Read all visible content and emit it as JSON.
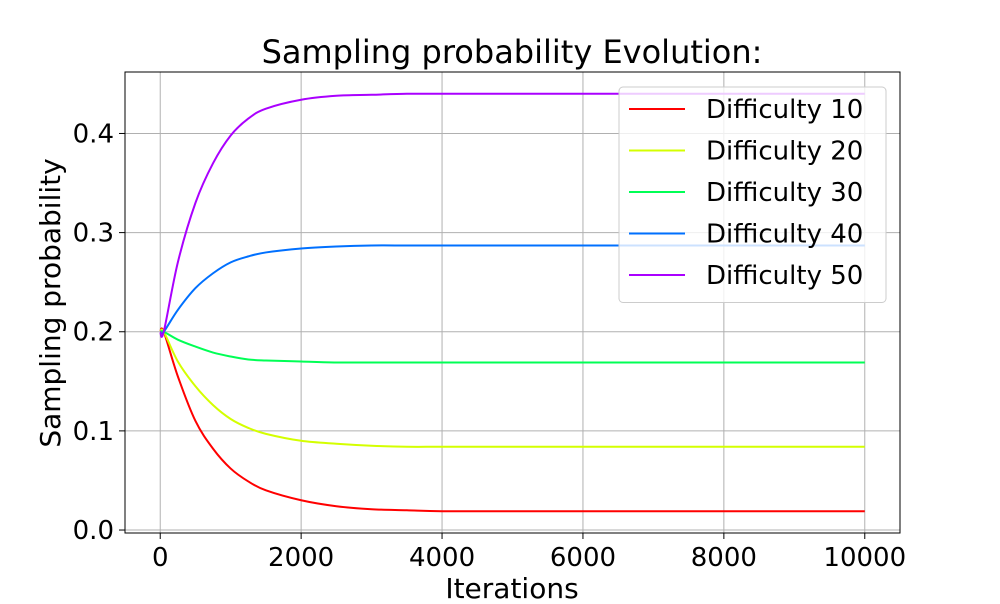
{
  "chart_data": {
    "type": "line",
    "title": "Sampling probability Evolution:",
    "xlabel": "Iterations",
    "ylabel": "Sampling probability",
    "xlim": [
      -500,
      10500
    ],
    "ylim": [
      -0.003,
      0.462
    ],
    "xticks": [
      0,
      2000,
      4000,
      6000,
      8000,
      10000
    ],
    "xtick_labels": [
      "0",
      "2000",
      "4000",
      "6000",
      "8000",
      "10000"
    ],
    "yticks": [
      0.0,
      0.1,
      0.2,
      0.3,
      0.4
    ],
    "ytick_labels": [
      "0.0",
      "0.1",
      "0.2",
      "0.3",
      "0.4"
    ],
    "grid": true,
    "legend_position": "top-right",
    "x": [
      0,
      50,
      250,
      500,
      750,
      1000,
      1250,
      1500,
      2000,
      2500,
      3000,
      3500,
      4000,
      5000,
      6000,
      7000,
      8000,
      9000,
      10000
    ],
    "series": [
      {
        "name": "Difficulty 10",
        "color": "#ff0000",
        "values": [
          0.2,
          0.2,
          0.155,
          0.11,
          0.082,
          0.062,
          0.049,
          0.04,
          0.03,
          0.024,
          0.021,
          0.02,
          0.019,
          0.019,
          0.019,
          0.019,
          0.019,
          0.019,
          0.019
        ]
      },
      {
        "name": "Difficulty 20",
        "color": "#d4ff00",
        "values": [
          0.2,
          0.2,
          0.17,
          0.145,
          0.126,
          0.112,
          0.103,
          0.097,
          0.09,
          0.087,
          0.085,
          0.084,
          0.084,
          0.084,
          0.084,
          0.084,
          0.084,
          0.084,
          0.084
        ]
      },
      {
        "name": "Difficulty 30",
        "color": "#00ff55",
        "values": [
          0.2,
          0.2,
          0.192,
          0.185,
          0.179,
          0.175,
          0.172,
          0.171,
          0.17,
          0.169,
          0.169,
          0.169,
          0.169,
          0.169,
          0.169,
          0.169,
          0.169,
          0.169,
          0.169
        ]
      },
      {
        "name": "Difficulty 40",
        "color": "#0070ff",
        "values": [
          0.2,
          0.2,
          0.222,
          0.244,
          0.259,
          0.27,
          0.276,
          0.28,
          0.284,
          0.286,
          0.287,
          0.287,
          0.287,
          0.287,
          0.287,
          0.287,
          0.287,
          0.287,
          0.287
        ]
      },
      {
        "name": "Difficulty 50",
        "color": "#aa00ff",
        "values": [
          0.2,
          0.2,
          0.27,
          0.33,
          0.37,
          0.398,
          0.415,
          0.425,
          0.434,
          0.438,
          0.439,
          0.44,
          0.44,
          0.44,
          0.44,
          0.44,
          0.44,
          0.44,
          0.44
        ]
      }
    ]
  }
}
